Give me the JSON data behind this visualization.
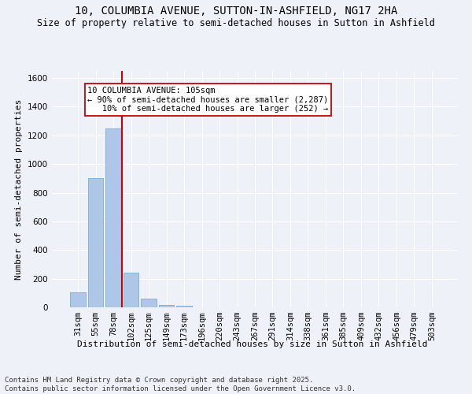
{
  "title1": "10, COLUMBIA AVENUE, SUTTON-IN-ASHFIELD, NG17 2HA",
  "title2": "Size of property relative to semi-detached houses in Sutton in Ashfield",
  "xlabel": "Distribution of semi-detached houses by size in Sutton in Ashfield",
  "ylabel": "Number of semi-detached properties",
  "categories": [
    "31sqm",
    "55sqm",
    "78sqm",
    "102sqm",
    "125sqm",
    "149sqm",
    "173sqm",
    "196sqm",
    "220sqm",
    "243sqm",
    "267sqm",
    "291sqm",
    "314sqm",
    "338sqm",
    "361sqm",
    "385sqm",
    "409sqm",
    "432sqm",
    "456sqm",
    "479sqm",
    "503sqm"
  ],
  "values": [
    105,
    900,
    1250,
    240,
    60,
    18,
    10,
    0,
    0,
    0,
    0,
    0,
    0,
    0,
    0,
    0,
    0,
    0,
    0,
    0,
    0
  ],
  "bar_color": "#aec6e8",
  "bar_edge_color": "#7aaed4",
  "subject_line_color": "#cc0000",
  "annotation_text": "10 COLUMBIA AVENUE: 105sqm\n← 90% of semi-detached houses are smaller (2,287)\n   10% of semi-detached houses are larger (252) →",
  "annotation_box_color": "#ffffff",
  "annotation_border_color": "#cc0000",
  "ylim": [
    0,
    1650
  ],
  "yticks": [
    0,
    200,
    400,
    600,
    800,
    1000,
    1200,
    1400,
    1600
  ],
  "background_color": "#eef2f8",
  "grid_color": "#ffffff",
  "footer_text": "Contains HM Land Registry data © Crown copyright and database right 2025.\nContains public sector information licensed under the Open Government Licence v3.0.",
  "title1_fontsize": 10,
  "title2_fontsize": 8.5,
  "xlabel_fontsize": 8,
  "ylabel_fontsize": 8,
  "tick_fontsize": 7.5,
  "annotation_fontsize": 7.5,
  "footer_fontsize": 6.5
}
